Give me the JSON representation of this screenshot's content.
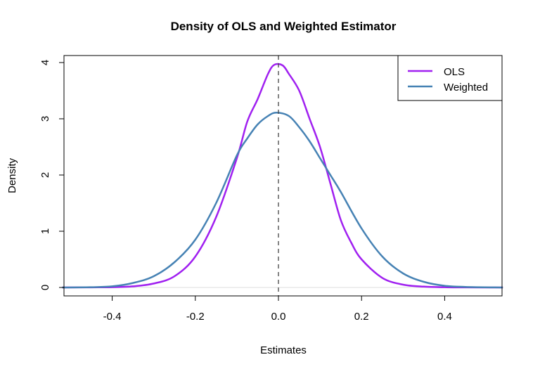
{
  "chart_data": {
    "type": "line",
    "title": "Density of OLS and Weighted Estimator",
    "xlabel": "Estimates",
    "ylabel": "Density",
    "xlim": [
      -0.516,
      0.538
    ],
    "ylim": [
      -0.15,
      4.125
    ],
    "xticks": [
      -0.4,
      -0.2,
      0.0,
      0.2,
      0.4
    ],
    "xtick_labels": [
      "-0.4",
      "-0.2",
      "0.0",
      "0.2",
      "0.4"
    ],
    "yticks": [
      0,
      1,
      2,
      3,
      4
    ],
    "ytick_labels": [
      "0",
      "1",
      "2",
      "3",
      "4"
    ],
    "grid": false,
    "legend_placement": "top-right",
    "reference_line": {
      "x": 0,
      "style": "dashed",
      "color": "#444444"
    },
    "baseline": {
      "y": 0,
      "color": "#dddddd"
    },
    "series": [
      {
        "name": "OLS",
        "color": "#a020f0",
        "x": [
          -0.52,
          -0.45,
          -0.4,
          -0.35,
          -0.3,
          -0.25,
          -0.2,
          -0.15,
          -0.1,
          -0.075,
          -0.05,
          -0.025,
          -0.01,
          0.01,
          0.025,
          0.05,
          0.075,
          0.1,
          0.125,
          0.15,
          0.175,
          0.2,
          0.25,
          0.3,
          0.35,
          0.4,
          0.45,
          0.54
        ],
        "y": [
          0,
          0.002,
          0.005,
          0.02,
          0.07,
          0.2,
          0.55,
          1.25,
          2.3,
          2.95,
          3.35,
          3.8,
          3.96,
          3.95,
          3.8,
          3.5,
          3.0,
          2.5,
          1.85,
          1.2,
          0.8,
          0.5,
          0.17,
          0.05,
          0.015,
          0.004,
          0.001,
          0
        ]
      },
      {
        "name": "Weighted",
        "color": "#4682b4",
        "x": [
          -0.52,
          -0.45,
          -0.4,
          -0.35,
          -0.3,
          -0.25,
          -0.2,
          -0.15,
          -0.1,
          -0.075,
          -0.05,
          -0.025,
          -0.005,
          0.025,
          0.05,
          0.075,
          0.1,
          0.125,
          0.15,
          0.2,
          0.25,
          0.3,
          0.35,
          0.4,
          0.45,
          0.54
        ],
        "y": [
          0,
          0.005,
          0.02,
          0.08,
          0.2,
          0.45,
          0.85,
          1.5,
          2.35,
          2.65,
          2.9,
          3.05,
          3.11,
          3.05,
          2.85,
          2.6,
          2.3,
          2.0,
          1.7,
          1.05,
          0.55,
          0.25,
          0.1,
          0.03,
          0.01,
          0
        ]
      }
    ]
  }
}
